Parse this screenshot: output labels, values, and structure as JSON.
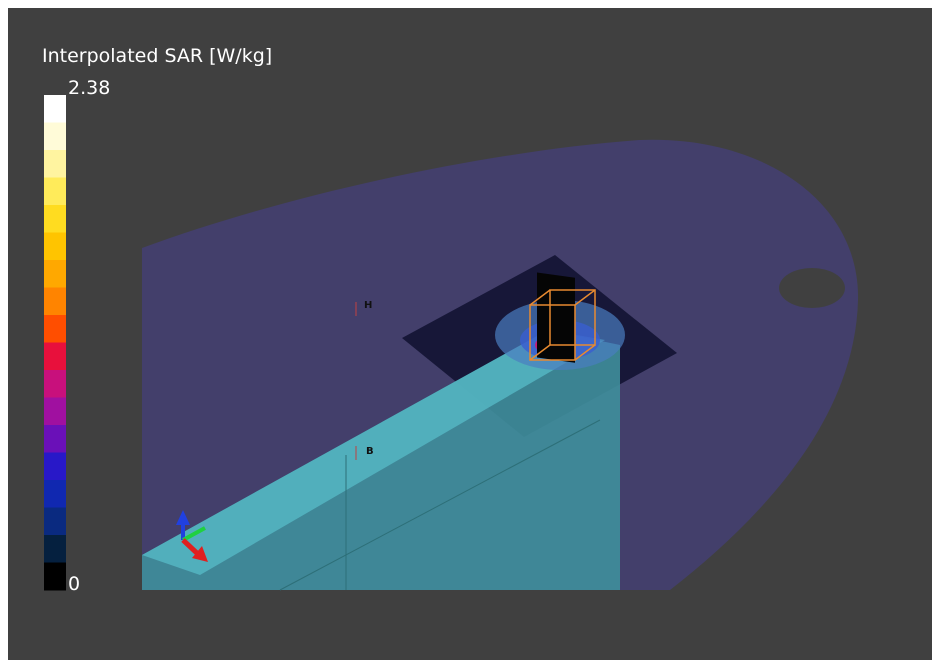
{
  "colorbar": {
    "title": "Interpolated SAR [W/kg]",
    "max_label": "2.38",
    "min_label": "0"
  },
  "markers": [
    {
      "label": "H"
    },
    {
      "label": "B"
    }
  ]
}
